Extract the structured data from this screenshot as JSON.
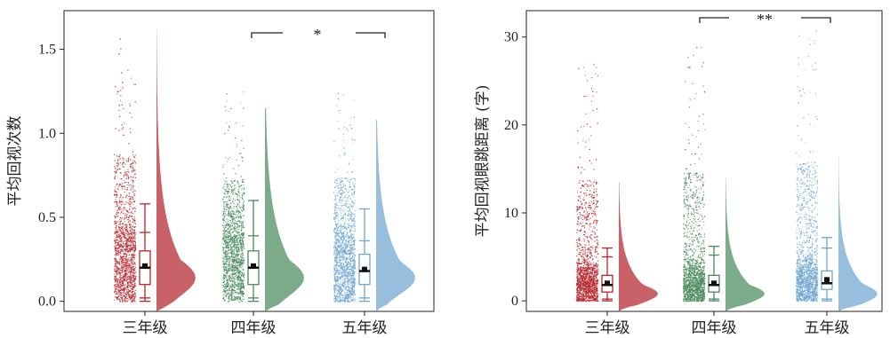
{
  "chart_data": [
    {
      "type": "raincloud",
      "ylabel": "平均回视次数",
      "ylim": [
        -0.06,
        1.73
      ],
      "yticks": [
        "0.0",
        "0.5",
        "1.0",
        "1.5"
      ],
      "ytick_values": [
        0.0,
        0.5,
        1.0,
        1.5
      ],
      "categories": [
        "三年级",
        "四年级",
        "五年级"
      ],
      "colors": [
        "#b5262d",
        "#4a8a5c",
        "#6fa6d0"
      ],
      "groups": [
        {
          "name": "三年级",
          "min": 0.0,
          "q1": 0.1,
          "median": 0.2,
          "mean": 0.21,
          "q3": 0.3,
          "max": 0.58,
          "whisker_low": 0.02,
          "whisker_high": 0.41,
          "density_peak": 0.14,
          "density_top": 1.62,
          "max_point": 1.58
        },
        {
          "name": "四年级",
          "min": 0.0,
          "q1": 0.1,
          "median": 0.2,
          "mean": 0.21,
          "q3": 0.3,
          "max": 0.6,
          "whisker_low": 0.02,
          "whisker_high": 0.39,
          "density_peak": 0.14,
          "density_top": 1.15,
          "max_point": 1.25
        },
        {
          "name": "五年级",
          "min": 0.0,
          "q1": 0.1,
          "median": 0.18,
          "mean": 0.19,
          "q3": 0.28,
          "max": 0.55,
          "whisker_low": 0.02,
          "whisker_high": 0.36,
          "density_peak": 0.14,
          "density_top": 1.08,
          "max_point": 1.3
        }
      ],
      "significance": [
        {
          "from": "四年级",
          "to": "五年级",
          "label": "*"
        }
      ]
    },
    {
      "type": "raincloud",
      "ylabel": "平均回视眼跳距离 (字)",
      "ylim": [
        -1.2,
        33
      ],
      "yticks": [
        "0",
        "10",
        "20",
        "30"
      ],
      "ytick_values": [
        0,
        10,
        20,
        30
      ],
      "categories": [
        "三年级",
        "四年级",
        "五年级"
      ],
      "colors": [
        "#b5262d",
        "#4a8a5c",
        "#6fa6d0"
      ],
      "groups": [
        {
          "name": "三年级",
          "min": 0.0,
          "q1": 1.0,
          "median": 1.8,
          "mean": 2.0,
          "q3": 2.9,
          "max": 6.0,
          "whisker_low": 0.2,
          "whisker_high": 5.0,
          "density_peak": 0.8,
          "density_top": 13.5,
          "max_point": 27.0
        },
        {
          "name": "四年级",
          "min": 0.0,
          "q1": 1.0,
          "median": 1.8,
          "mean": 2.0,
          "q3": 2.9,
          "max": 6.2,
          "whisker_low": 0.2,
          "whisker_high": 5.2,
          "density_peak": 0.8,
          "density_top": 14.0,
          "max_point": 29.0
        },
        {
          "name": "五年级",
          "min": 0.0,
          "q1": 1.3,
          "median": 2.0,
          "mean": 2.4,
          "q3": 3.4,
          "max": 7.2,
          "whisker_low": 0.2,
          "whisker_high": 6.0,
          "density_peak": 0.8,
          "density_top": 16.5,
          "max_point": 31.0
        }
      ],
      "significance": [
        {
          "from": "四年级",
          "to": "五年级",
          "label": "**"
        }
      ]
    }
  ]
}
